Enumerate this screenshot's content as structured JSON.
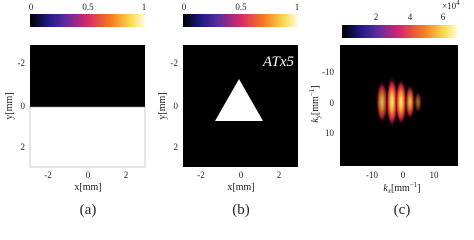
{
  "panels": [
    {
      "colorbar_ticks": [
        "0",
        "0.5",
        "1"
      ],
      "yticks": [
        "-2",
        "0",
        "2"
      ],
      "xticks": [
        "-2",
        "0",
        "2"
      ],
      "xlabel": "x[mm]",
      "ylabel": "y[mm]",
      "caption": "(a)"
    },
    {
      "colorbar_ticks": [
        "0",
        "0.5",
        "1"
      ],
      "yticks": [
        "-2",
        "0",
        "2"
      ],
      "xticks": [
        "-2",
        "0",
        "2"
      ],
      "xlabel": "x[mm]",
      "ylabel": "y[mm]",
      "caption": "(b)",
      "annotation": "ATx5"
    },
    {
      "colorbar_ticks": [
        "2",
        "4",
        "6"
      ],
      "colorbar_scale": [
        "×10",
        "4"
      ],
      "yticks": [
        "-10",
        "0",
        "10"
      ],
      "xticks": [
        "-10",
        "0",
        "10"
      ],
      "xlabel": [
        "k",
        "x",
        "[mm",
        "−1",
        "]"
      ],
      "ylabel": [
        "k",
        "y",
        "[mm",
        "−1",
        "]"
      ],
      "caption": "(c)"
    }
  ]
}
